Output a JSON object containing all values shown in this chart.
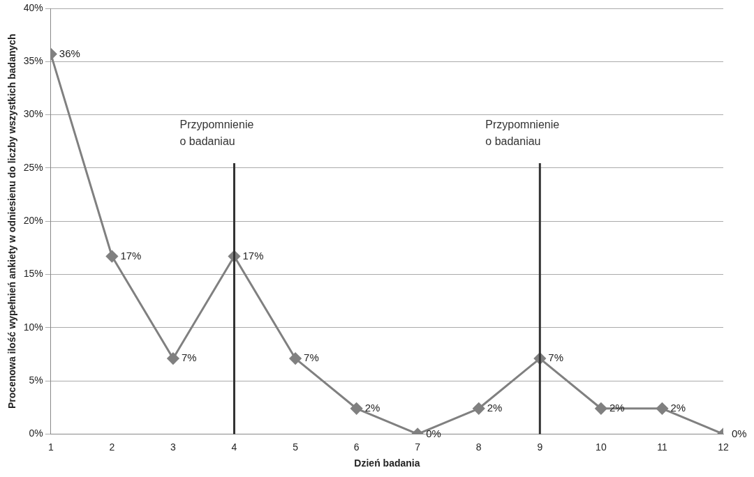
{
  "chart_data": {
    "type": "line",
    "xlabel": "Dzień badania",
    "ylabel": "Procenowa ilość wypełnień ankiety w odniesienu do liczby wszystkich badanych",
    "x": [
      1,
      2,
      3,
      4,
      5,
      6,
      7,
      8,
      9,
      10,
      11,
      12
    ],
    "series": [
      {
        "color": "#808080",
        "values": [
          35.7,
          16.7,
          7.1,
          16.7,
          7.1,
          2.4,
          0,
          2.4,
          7.1,
          2.4,
          2.4,
          0
        ],
        "value_labels": [
          "36%",
          "17%",
          "7%",
          "17%",
          "7%",
          "2%",
          "0%",
          "2%",
          "7%",
          "2%",
          "2%",
          "0%"
        ]
      }
    ],
    "xlim": [
      1,
      12
    ],
    "xticks": [
      1,
      2,
      3,
      4,
      5,
      6,
      7,
      8,
      9,
      10,
      11,
      12
    ],
    "ylim": [
      0,
      40
    ],
    "yticks": [
      {
        "value": 0,
        "label": "0%"
      },
      {
        "value": 5,
        "label": "5%"
      },
      {
        "value": 10,
        "label": "10%"
      },
      {
        "value": 15,
        "label": "15%"
      },
      {
        "value": 20,
        "label": "20%"
      },
      {
        "value": 25,
        "label": "25%"
      },
      {
        "value": 30,
        "label": "30%"
      },
      {
        "value": 35,
        "label": "35%"
      },
      {
        "value": 40,
        "label": "40%"
      }
    ],
    "grid": "y",
    "marker": "diamond",
    "line_style": "solid",
    "legend": false,
    "ref_lines": [
      {
        "axis": "x",
        "value": 4,
        "label": "Przypomnienie\no badaniau",
        "color": "#333333"
      },
      {
        "axis": "x",
        "value": 9,
        "label": "Przypomnienie\no badaniau",
        "color": "#333333"
      }
    ]
  }
}
